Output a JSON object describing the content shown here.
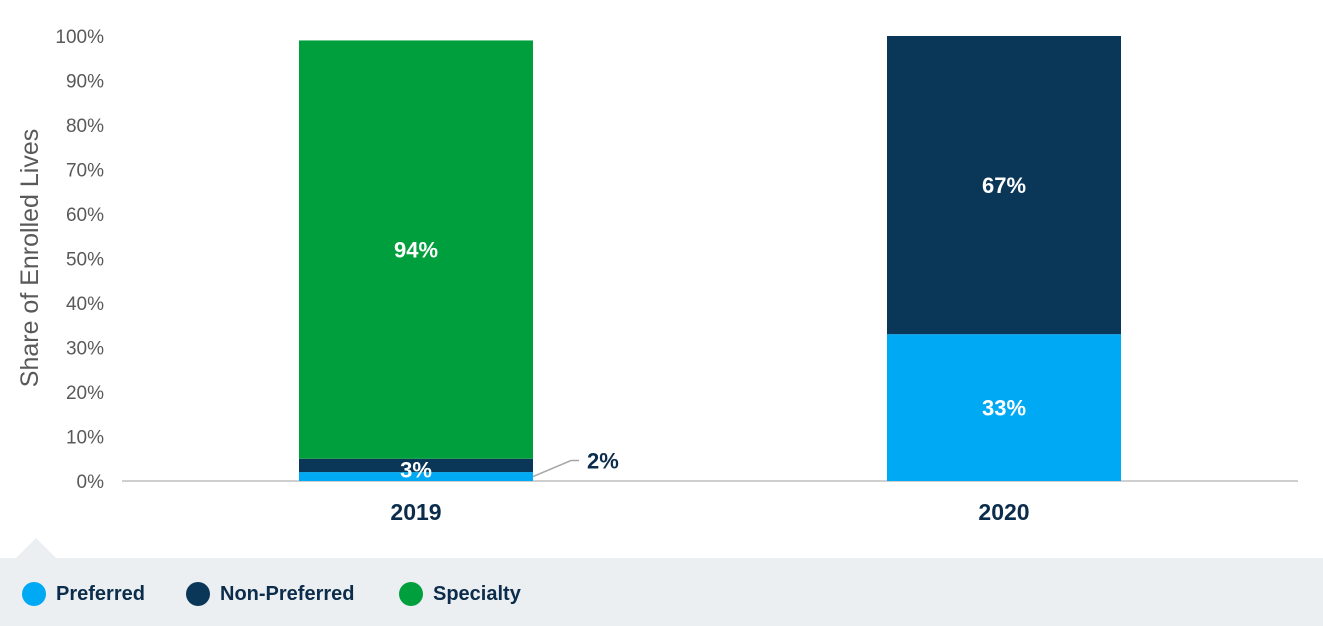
{
  "chart_data": {
    "type": "bar",
    "stacked": true,
    "categories": [
      "2019",
      "2020"
    ],
    "series": [
      {
        "name": "Preferred",
        "color": "#00a9f4",
        "values": [
          2,
          33
        ],
        "labels": [
          "2%",
          "33%"
        ]
      },
      {
        "name": "Non-Preferred",
        "color": "#0a3758",
        "values": [
          3,
          67
        ],
        "labels": [
          "3%",
          "67%"
        ]
      },
      {
        "name": "Specialty",
        "color": "#009f3d",
        "values": [
          94,
          0
        ],
        "labels": [
          "94%",
          ""
        ]
      }
    ],
    "ylabel": "Share of Enrolled Lives",
    "ylim": [
      0,
      100
    ],
    "yticks": [
      "0%",
      "10%",
      "20%",
      "30%",
      "40%",
      "50%",
      "60%",
      "70%",
      "80%",
      "90%",
      "100%"
    ],
    "grid": false,
    "legend_position": "bottom",
    "annotation": {
      "category": "2019",
      "series": "Preferred",
      "text": "2%"
    }
  }
}
